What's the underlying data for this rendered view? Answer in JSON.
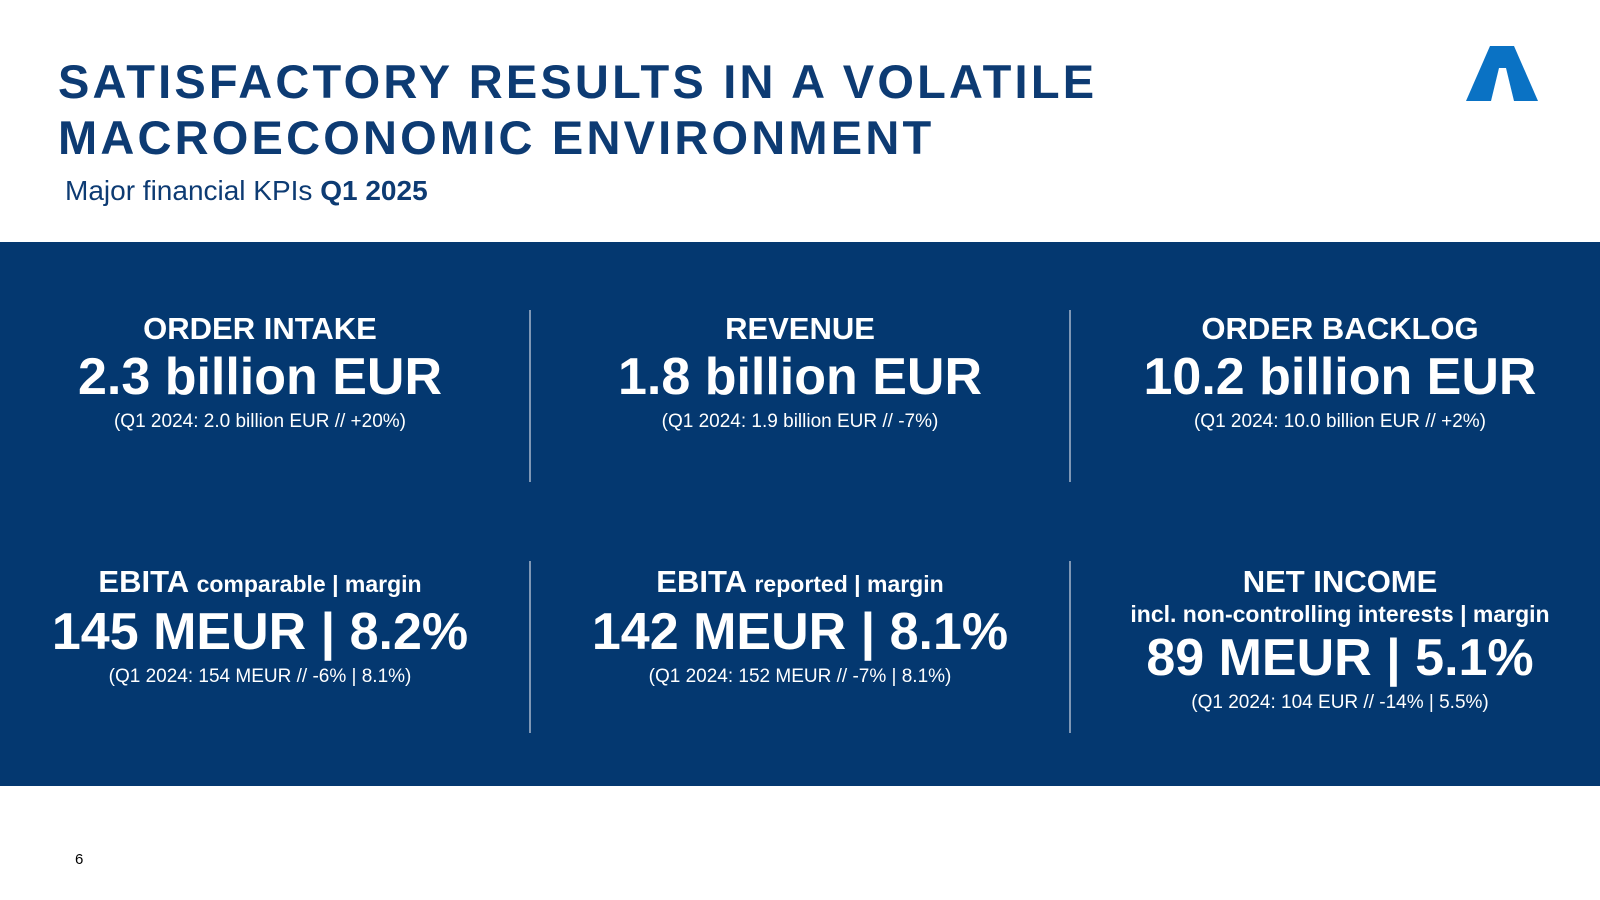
{
  "header": {
    "title_line1": "SATISFACTORY RESULTS IN A VOLATILE",
    "title_line2": "MACROECONOMIC ENVIRONMENT",
    "subtitle_prefix": "Major financial KPIs",
    "subtitle_period": "Q1 2025"
  },
  "logo": {
    "icon": "company-logo-triangle",
    "color": "#0a72c4"
  },
  "colors": {
    "panel": "#043870",
    "title": "#0d3b73"
  },
  "kpis": [
    {
      "label": "ORDER INTAKE",
      "value": "2.3 billion EUR",
      "comparison": "(Q1 2024: 2.0 billion EUR // +20%)"
    },
    {
      "label": "REVENUE",
      "value": "1.8 billion EUR",
      "comparison": "(Q1 2024: 1.9 billion EUR // -7%)"
    },
    {
      "label": "ORDER BACKLOG",
      "value": "10.2 billion EUR",
      "comparison": "(Q1 2024: 10.0 billion EUR // +2%)"
    },
    {
      "label": "EBITA",
      "label_suffix": "comparable | margin",
      "value": "145 MEUR | 8.2%",
      "comparison": "(Q1 2024: 154 MEUR // -6% | 8.1%)"
    },
    {
      "label": "EBITA",
      "label_suffix": "reported | margin",
      "value": "142 MEUR | 8.1%",
      "comparison": "(Q1 2024: 152 MEUR // -7% | 8.1%)"
    },
    {
      "label": "NET INCOME",
      "sublabel": "incl. non-controlling interests | margin",
      "value": "89 MEUR | 5.1%",
      "comparison": "(Q1 2024: 104 EUR // -14% | 5.5%)"
    }
  ],
  "footer": {
    "page_number": "6"
  }
}
